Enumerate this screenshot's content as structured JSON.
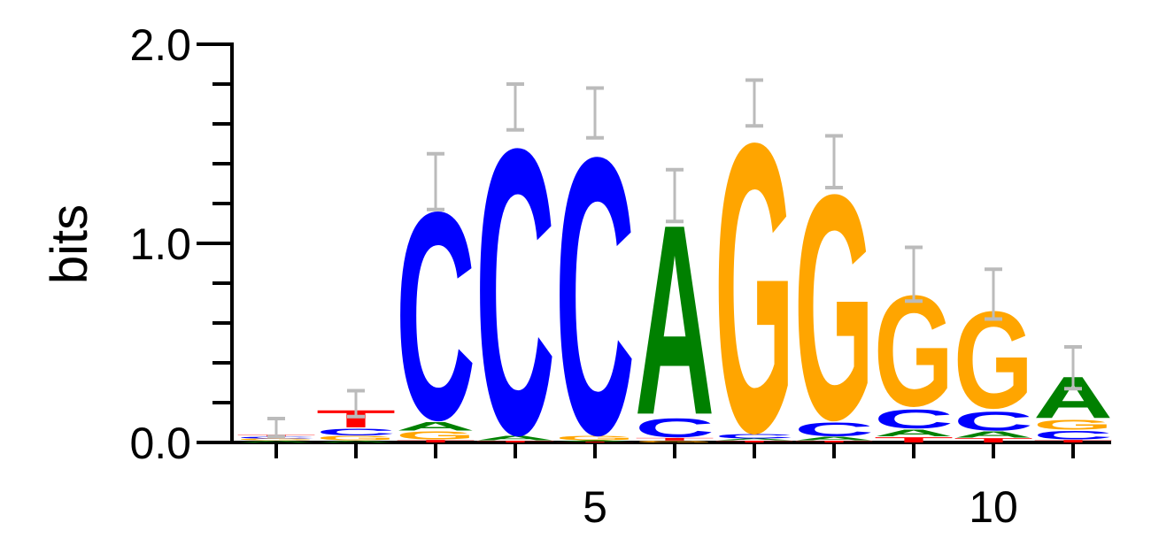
{
  "chart_data": {
    "type": "sequence-logo",
    "ylabel": "bits",
    "ylim": [
      0,
      2
    ],
    "yticks": [
      {
        "value": 0,
        "label": "0.0"
      },
      {
        "value": 1,
        "label": "1.0"
      },
      {
        "value": 2,
        "label": "2.0"
      }
    ],
    "xticks": [
      {
        "value": 5,
        "label": "5"
      },
      {
        "value": 10,
        "label": "10"
      }
    ],
    "colors": {
      "A": "#008000",
      "C": "#0000FF",
      "G": "#FFA500",
      "T": "#FF0000",
      "error_bar": "#BBBBBB",
      "axis": "#000000"
    },
    "positions": [
      {
        "pos": 1,
        "letters": [
          {
            "base": "A",
            "bits": 0.01
          },
          {
            "base": "G",
            "bits": 0.01
          },
          {
            "base": "C",
            "bits": 0.01
          },
          {
            "base": "T",
            "bits": 0.01
          }
        ],
        "error": [
          0.03,
          0.12
        ]
      },
      {
        "pos": 2,
        "letters": [
          {
            "base": "A",
            "bits": 0.01
          },
          {
            "base": "G",
            "bits": 0.025
          },
          {
            "base": "C",
            "bits": 0.04
          },
          {
            "base": "T",
            "bits": 0.1
          }
        ],
        "error": [
          0.13,
          0.26
        ]
      },
      {
        "pos": 3,
        "letters": [
          {
            "base": "T",
            "bits": 0.015
          },
          {
            "base": "G",
            "bits": 0.045
          },
          {
            "base": "A",
            "bits": 0.05
          },
          {
            "base": "C",
            "bits": 1.2
          }
        ],
        "error": [
          1.17,
          1.45
        ]
      },
      {
        "pos": 4,
        "letters": [
          {
            "base": "T",
            "bits": 0.01
          },
          {
            "base": "A",
            "bits": 0.025
          },
          {
            "base": "C",
            "bits": 1.65
          }
        ],
        "error": [
          1.57,
          1.8
        ]
      },
      {
        "pos": 5,
        "letters": [
          {
            "base": "T",
            "bits": 0.005
          },
          {
            "base": "A",
            "bits": 0.005
          },
          {
            "base": "G",
            "bits": 0.025
          },
          {
            "base": "C",
            "bits": 1.6
          }
        ],
        "error": [
          1.53,
          1.78
        ]
      },
      {
        "pos": 6,
        "letters": [
          {
            "base": "G",
            "bits": 0.01
          },
          {
            "base": "T",
            "bits": 0.015
          },
          {
            "base": "C",
            "bits": 0.11
          },
          {
            "base": "A",
            "bits": 1.1
          }
        ],
        "error": [
          1.11,
          1.37
        ]
      },
      {
        "pos": 7,
        "letters": [
          {
            "base": "T",
            "bits": 0.01
          },
          {
            "base": "A",
            "bits": 0.01
          },
          {
            "base": "C",
            "bits": 0.025
          },
          {
            "base": "G",
            "bits": 1.67
          }
        ],
        "error": [
          1.59,
          1.82
        ]
      },
      {
        "pos": 8,
        "letters": [
          {
            "base": "T",
            "bits": 0.01
          },
          {
            "base": "A",
            "bits": 0.02
          },
          {
            "base": "C",
            "bits": 0.08
          },
          {
            "base": "G",
            "bits": 1.3
          }
        ],
        "error": [
          1.28,
          1.54
        ]
      },
      {
        "pos": 9,
        "letters": [
          {
            "base": "T",
            "bits": 0.03
          },
          {
            "base": "A",
            "bits": 0.04
          },
          {
            "base": "C",
            "bits": 0.11
          },
          {
            "base": "G",
            "bits": 0.64
          }
        ],
        "error": [
          0.71,
          0.98
        ]
      },
      {
        "pos": 10,
        "letters": [
          {
            "base": "T",
            "bits": 0.025
          },
          {
            "base": "A",
            "bits": 0.035
          },
          {
            "base": "C",
            "bits": 0.11
          },
          {
            "base": "G",
            "bits": 0.56
          }
        ],
        "error": [
          0.62,
          0.87
        ]
      },
      {
        "pos": 11,
        "letters": [
          {
            "base": "T",
            "bits": 0.015
          },
          {
            "base": "C",
            "bits": 0.05
          },
          {
            "base": "G",
            "bits": 0.055
          },
          {
            "base": "A",
            "bits": 0.24
          }
        ],
        "error": [
          0.27,
          0.48
        ]
      }
    ]
  }
}
